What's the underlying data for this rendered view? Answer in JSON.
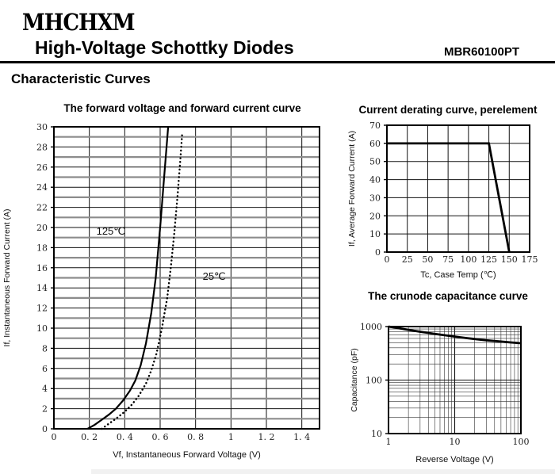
{
  "header": {
    "logo": "MHCHXM",
    "title": "High-Voltage Schottky Diodes",
    "part_number": "MBR60100PT"
  },
  "section_title": "Characteristic Curves",
  "chart_data": [
    {
      "id": "forward",
      "type": "line",
      "title": "The forward voltage and forward current curve",
      "xlabel": "Vf, Instantaneous Forward Voltage (V)",
      "ylabel": "If, Instantaneous Forward Current (A)",
      "xscale": "linear",
      "yscale": "linear",
      "xlim": [
        0,
        1.5
      ],
      "ylim": [
        0,
        30
      ],
      "y_grid_step": 1,
      "grid": true,
      "xticks": [
        0,
        0.2,
        0.4,
        0.6,
        0.8,
        1.0,
        1.2,
        1.4
      ],
      "xtick_labels": [
        "0",
        "0. 2",
        "0. 4",
        "0. 6",
        "0. 8",
        "1",
        "1. 2",
        "1. 4"
      ],
      "yticks": [
        0,
        2,
        4,
        6,
        8,
        10,
        12,
        14,
        16,
        18,
        20,
        22,
        24,
        26,
        28,
        30
      ],
      "ytick_labels": [
        "0",
        "2",
        "4",
        "6",
        "8",
        "10",
        "12",
        "14",
        "16",
        "18",
        "20",
        "22",
        "24",
        "26",
        "28",
        "30"
      ],
      "series": [
        {
          "name": "125℃",
          "style": "solid",
          "label_pos": [
            0.24,
            19.3
          ],
          "points": [
            [
              0.19,
              0
            ],
            [
              0.23,
              0.4
            ],
            [
              0.27,
              0.9
            ],
            [
              0.31,
              1.4
            ],
            [
              0.35,
              2.0
            ],
            [
              0.39,
              2.8
            ],
            [
              0.43,
              3.8
            ],
            [
              0.46,
              4.8
            ],
            [
              0.49,
              6.3
            ],
            [
              0.52,
              8.5
            ],
            [
              0.55,
              11.5
            ],
            [
              0.575,
              15
            ],
            [
              0.6,
              20
            ],
            [
              0.62,
              24.5
            ],
            [
              0.645,
              30
            ]
          ]
        },
        {
          "name": "25℃",
          "style": "dotted",
          "label_pos": [
            0.84,
            14.8
          ],
          "points": [
            [
              0.27,
              0
            ],
            [
              0.31,
              0.5
            ],
            [
              0.35,
              1.0
            ],
            [
              0.4,
              1.7
            ],
            [
              0.44,
              2.4
            ],
            [
              0.48,
              3.3
            ],
            [
              0.52,
              4.5
            ],
            [
              0.55,
              5.8
            ],
            [
              0.58,
              7.5
            ],
            [
              0.61,
              10
            ],
            [
              0.64,
              13
            ],
            [
              0.66,
              16
            ],
            [
              0.68,
              19.5
            ],
            [
              0.7,
              23.5
            ],
            [
              0.715,
              27
            ],
            [
              0.725,
              29.5
            ]
          ]
        }
      ]
    },
    {
      "id": "derating",
      "type": "line",
      "title": "Current derating curve, perelement",
      "xlabel": "Tc, Case Temp (℃)",
      "ylabel": "If, Average Forward Current (A)",
      "xscale": "linear",
      "yscale": "linear",
      "xlim": [
        0,
        175
      ],
      "ylim": [
        0,
        70
      ],
      "grid": true,
      "xticks": [
        0,
        25,
        50,
        75,
        100,
        125,
        150,
        175
      ],
      "xtick_labels": [
        "0",
        "25",
        "50",
        "75",
        "100",
        "125",
        "150",
        "175"
      ],
      "yticks": [
        0,
        10,
        20,
        30,
        40,
        50,
        60,
        70
      ],
      "ytick_labels": [
        "0",
        "10",
        "20",
        "30",
        "40",
        "50",
        "60",
        "70"
      ],
      "series": [
        {
          "name": "derating-line",
          "style": "solid-thick",
          "points": [
            [
              0,
              60
            ],
            [
              125,
              60
            ],
            [
              150,
              0
            ]
          ]
        }
      ]
    },
    {
      "id": "capacitance",
      "type": "line",
      "title": "The crunode capacitance curve",
      "xlabel": "Reverse Voltage (V)",
      "ylabel": "Capacitance (pF)",
      "xscale": "log",
      "yscale": "log",
      "xlim": [
        1,
        100
      ],
      "ylim": [
        10,
        1000
      ],
      "grid": true,
      "xticks": [
        1,
        10,
        100
      ],
      "xtick_labels": [
        "1",
        "10",
        "100"
      ],
      "yticks": [
        10,
        100,
        1000
      ],
      "ytick_labels": [
        "10",
        "100",
        "1000"
      ],
      "series": [
        {
          "name": "capacitance-line",
          "style": "solid-thick",
          "points": [
            [
              1,
              1000
            ],
            [
              1.5,
              920
            ],
            [
              2,
              870
            ],
            [
              3,
              800
            ],
            [
              4,
              760
            ],
            [
              5,
              730
            ],
            [
              7,
              690
            ],
            [
              10,
              650
            ],
            [
              15,
              610
            ],
            [
              20,
              585
            ],
            [
              30,
              555
            ],
            [
              50,
              525
            ],
            [
              70,
              505
            ],
            [
              100,
              488
            ]
          ]
        }
      ]
    }
  ]
}
